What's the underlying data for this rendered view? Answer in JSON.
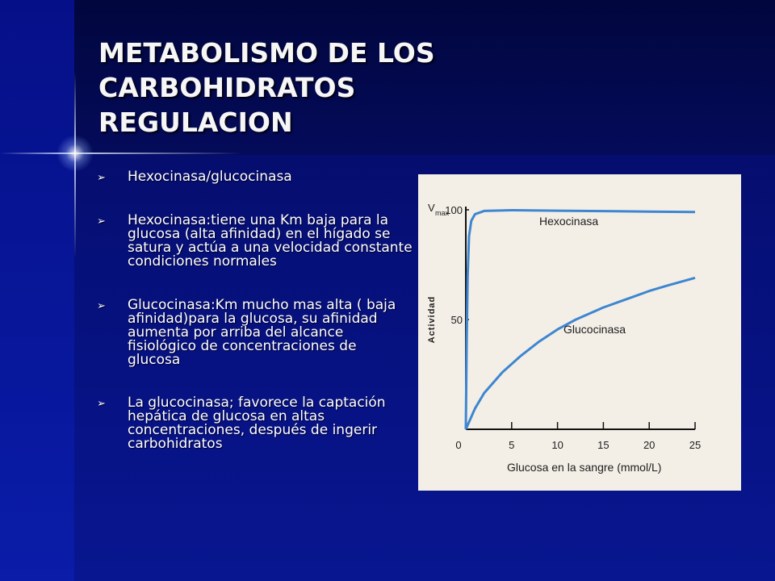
{
  "slide": {
    "title_lines": [
      "METABOLISMO DE LOS",
      "CARBOHIDRATOS",
      "REGULACION"
    ],
    "bullet_marker": "➢",
    "bullets": [
      "Hexocinasa/glucocinasa",
      "Hexocinasa:tiene una Km baja para la glucosa (alta afinidad) en el hígado se satura y actúa a una velocidad constante condiciones normales",
      "Glucocinasa:Km mucho mas alta ( baja afinidad)para la glucosa, su afinidad aumenta por arriba del alcance fisiológico de concentraciones de glucosa",
      "La glucocinasa; favorece la captación hepática de glucosa en altas concentraciones, después de ingerir carbohidratos"
    ]
  },
  "colors": {
    "background": "#06107a",
    "title": "#f6f6f6",
    "chart_background": "#f3efe7",
    "curve": "#3e86d0"
  },
  "chart_data": {
    "type": "line",
    "title": "",
    "xlabel": "Glucosa en la sangre (mmol/L)",
    "ylabel": "Actividad",
    "vmax_label": "V",
    "vmax_sub": "max",
    "xlim": [
      0,
      25
    ],
    "ylim": [
      0,
      100
    ],
    "x_ticks": [
      0,
      5,
      10,
      15,
      20,
      25
    ],
    "y_ticks": [
      50,
      100
    ],
    "grid": false,
    "series": [
      {
        "name": "Hexocinasa",
        "x": [
          0,
          0.1,
          0.2,
          0.35,
          0.6,
          1,
          2,
          5,
          10,
          15,
          20,
          25
        ],
        "values": [
          0,
          40,
          70,
          88,
          95,
          98,
          99.5,
          99.8,
          99.6,
          99.4,
          99.2,
          99
        ]
      },
      {
        "name": "Glucocinasa",
        "x": [
          0,
          1,
          2,
          4,
          6,
          8,
          10,
          12,
          15,
          18,
          20,
          22,
          25
        ],
        "values": [
          0,
          9.5,
          16.5,
          26,
          33.5,
          40,
          45.5,
          50,
          55.5,
          60,
          63,
          65.5,
          69
        ]
      }
    ]
  }
}
